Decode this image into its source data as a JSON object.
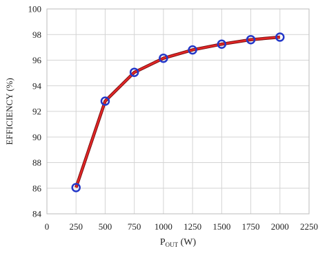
{
  "chart_data": {
    "type": "line",
    "xlabel": {
      "main": "P",
      "sub": "OUT",
      "rest": " (W)"
    },
    "ylabel": "EFFICIENCY (%)",
    "x": [
      250,
      500,
      750,
      1000,
      1250,
      1500,
      1750,
      2000
    ],
    "series": [
      {
        "color": "#e32626",
        "marker_color": "#2438c9",
        "values": [
          86.05,
          92.8,
          95.05,
          96.15,
          96.8,
          97.25,
          97.6,
          97.8
        ]
      }
    ],
    "xlim": [
      0,
      2250
    ],
    "xticks": [
      0,
      250,
      500,
      750,
      1000,
      1250,
      1500,
      1750,
      2000,
      2250
    ],
    "ylim": [
      84,
      100
    ],
    "yticks": [
      84,
      86,
      88,
      90,
      92,
      94,
      96,
      98,
      100
    ],
    "grid": true
  }
}
